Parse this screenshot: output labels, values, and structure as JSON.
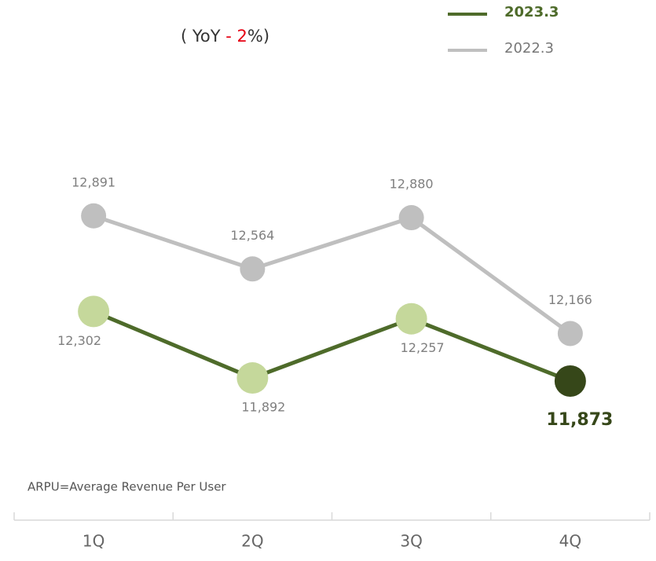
{
  "chart_data": {
    "type": "line",
    "subtitle": [
      "( YoY ",
      "- 2",
      "%)"
    ],
    "annotation": "ARPU=Average Revenue Per User",
    "categories": [
      "1Q",
      "2Q",
      "3Q",
      "4Q"
    ],
    "ylim": [
      11500,
      13350
    ],
    "legend": "top-right",
    "series": [
      {
        "name": "2023.3",
        "color": "#4e6b2a",
        "marker_color": "#c5d89b",
        "highlight_color": "#364719",
        "values": [
          12302,
          11892,
          12257,
          11873
        ],
        "value_labels": [
          "12,302",
          "11,892",
          "12,257",
          "11,873"
        ]
      },
      {
        "name": "2022.3",
        "color": "#bfbfbf",
        "marker_color": "#bfbfbf",
        "values": [
          12891,
          12564,
          12880,
          12166
        ],
        "value_labels": [
          "12,891",
          "12,564",
          "12,880",
          "12,166"
        ]
      }
    ]
  }
}
